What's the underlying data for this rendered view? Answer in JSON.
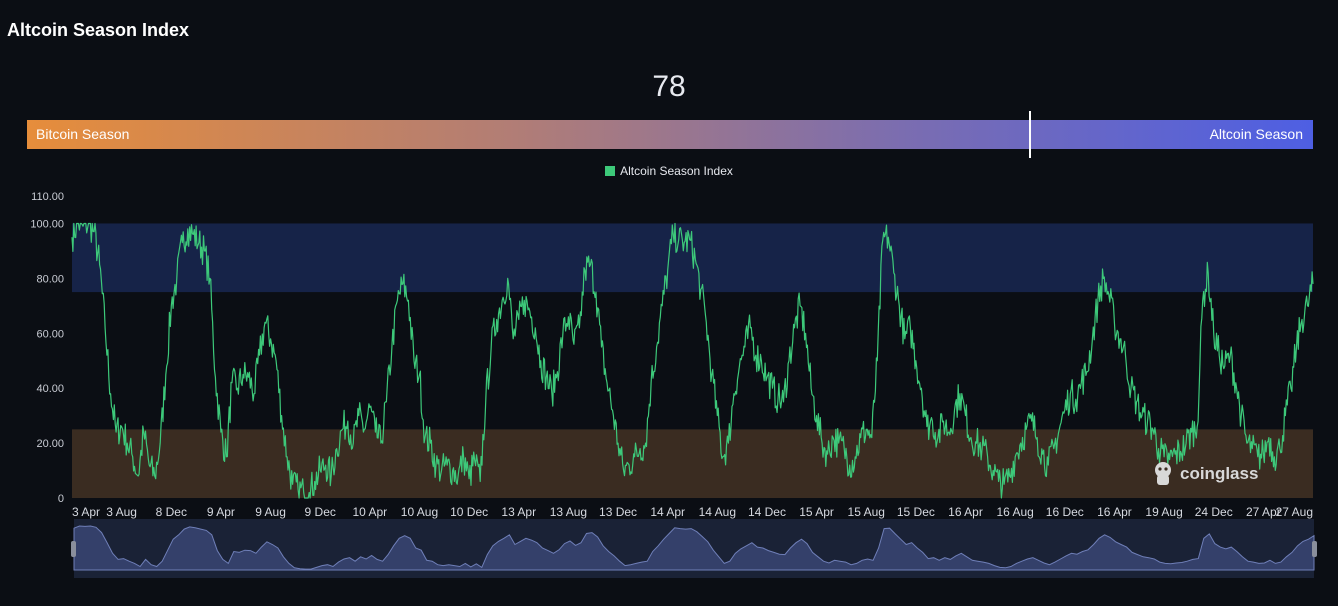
{
  "page": {
    "title": "Altcoin Season Index",
    "current_value": "78",
    "bar_left_label": "Bitcoin Season",
    "bar_right_label": "Altcoin Season",
    "marker_fraction": 0.78,
    "watermark": "coinglass"
  },
  "colors": {
    "line": "#3dc97a",
    "altcoin_zone": "#162348",
    "bitcoin_zone": "#3a2c21",
    "background": "#0b0e14",
    "navigator_fill": "#34406a"
  },
  "chart_data": {
    "type": "line",
    "title": "",
    "legend": [
      "Altcoin Season Index"
    ],
    "legend_position": "top-center",
    "ylim": [
      0,
      110
    ],
    "yticks": [
      "0",
      "20.00",
      "40.00",
      "60.00",
      "80.00",
      "100.00",
      "110.00"
    ],
    "ytick_values": [
      0,
      20,
      40,
      60,
      80,
      100,
      110
    ],
    "x_tick_labels": [
      "3 Apr",
      "3 Aug",
      "8 Dec",
      "9 Apr",
      "9 Aug",
      "9 Dec",
      "10 Apr",
      "10 Aug",
      "10 Dec",
      "13 Apr",
      "13 Aug",
      "13 Dec",
      "14 Apr",
      "14 Aug",
      "14 Dec",
      "15 Apr",
      "15 Aug",
      "15 Dec",
      "16 Apr",
      "16 Aug",
      "16 Dec",
      "16 Apr",
      "19 Aug",
      "24 Dec",
      "27 Apr",
      "27 Aug"
    ],
    "bands": [
      {
        "from": 75,
        "to": 100,
        "meaning": "altcoin season"
      },
      {
        "from": 0,
        "to": 25,
        "meaning": "bitcoin season"
      }
    ],
    "series": [
      {
        "name": "Altcoin Season Index",
        "keypoints": [
          [
            0,
            95
          ],
          [
            1,
            100
          ],
          [
            2,
            99
          ],
          [
            3,
            100
          ],
          [
            4,
            97
          ],
          [
            5,
            85
          ],
          [
            6,
            62
          ],
          [
            7,
            38
          ],
          [
            8,
            24
          ],
          [
            9,
            26
          ],
          [
            10,
            20
          ],
          [
            11,
            15
          ],
          [
            12,
            8
          ],
          [
            13,
            24
          ],
          [
            14,
            12
          ],
          [
            15,
            8
          ],
          [
            16,
            20
          ],
          [
            17,
            45
          ],
          [
            18,
            70
          ],
          [
            19,
            80
          ],
          [
            20,
            93
          ],
          [
            21,
            98
          ],
          [
            22,
            96
          ],
          [
            23,
            93
          ],
          [
            24,
            90
          ],
          [
            25,
            80
          ],
          [
            26,
            44
          ],
          [
            27,
            24
          ],
          [
            28,
            15
          ],
          [
            29,
            42
          ],
          [
            30,
            40
          ],
          [
            31,
            45
          ],
          [
            32,
            44
          ],
          [
            33,
            38
          ],
          [
            34,
            52
          ],
          [
            35,
            64
          ],
          [
            36,
            58
          ],
          [
            37,
            50
          ],
          [
            38,
            30
          ],
          [
            39,
            15
          ],
          [
            40,
            5
          ],
          [
            41,
            3
          ],
          [
            42,
            2
          ],
          [
            43,
            2
          ],
          [
            44,
            6
          ],
          [
            45,
            10
          ],
          [
            46,
            12
          ],
          [
            47,
            8
          ],
          [
            48,
            18
          ],
          [
            49,
            25
          ],
          [
            50,
            28
          ],
          [
            51,
            20
          ],
          [
            52,
            30
          ],
          [
            53,
            25
          ],
          [
            54,
            33
          ],
          [
            55,
            24
          ],
          [
            56,
            20
          ],
          [
            57,
            35
          ],
          [
            58,
            55
          ],
          [
            59,
            72
          ],
          [
            60,
            78
          ],
          [
            61,
            72
          ],
          [
            62,
            50
          ],
          [
            63,
            45
          ],
          [
            64,
            22
          ],
          [
            65,
            20
          ],
          [
            66,
            12
          ],
          [
            67,
            10
          ],
          [
            68,
            12
          ],
          [
            69,
            10
          ],
          [
            70,
            8
          ],
          [
            71,
            15
          ],
          [
            72,
            7
          ],
          [
            73,
            14
          ],
          [
            74,
            6
          ],
          [
            75,
            35
          ],
          [
            76,
            55
          ],
          [
            77,
            65
          ],
          [
            78,
            72
          ],
          [
            79,
            80
          ],
          [
            80,
            58
          ],
          [
            81,
            65
          ],
          [
            82,
            72
          ],
          [
            83,
            68
          ],
          [
            84,
            62
          ],
          [
            85,
            50
          ],
          [
            86,
            44
          ],
          [
            87,
            38
          ],
          [
            88,
            46
          ],
          [
            89,
            60
          ],
          [
            90,
            66
          ],
          [
            91,
            56
          ],
          [
            92,
            62
          ],
          [
            93,
            83
          ],
          [
            94,
            85
          ],
          [
            95,
            75
          ],
          [
            96,
            55
          ],
          [
            97,
            42
          ],
          [
            98,
            32
          ],
          [
            99,
            20
          ],
          [
            100,
            10
          ],
          [
            101,
            12
          ],
          [
            102,
            15
          ],
          [
            103,
            18
          ],
          [
            104,
            20
          ],
          [
            105,
            42
          ],
          [
            106,
            55
          ],
          [
            107,
            70
          ],
          [
            108,
            83
          ],
          [
            109,
            96
          ],
          [
            110,
            94
          ],
          [
            111,
            93
          ],
          [
            112,
            94
          ],
          [
            113,
            87
          ],
          [
            114,
            76
          ],
          [
            115,
            64
          ],
          [
            116,
            45
          ],
          [
            117,
            30
          ],
          [
            118,
            15
          ],
          [
            119,
            20
          ],
          [
            120,
            38
          ],
          [
            121,
            48
          ],
          [
            122,
            55
          ],
          [
            123,
            62
          ],
          [
            124,
            52
          ],
          [
            125,
            50
          ],
          [
            126,
            44
          ],
          [
            127,
            40
          ],
          [
            128,
            36
          ],
          [
            129,
            35
          ],
          [
            130,
            50
          ],
          [
            131,
            62
          ],
          [
            132,
            70
          ],
          [
            133,
            60
          ],
          [
            134,
            40
          ],
          [
            135,
            30
          ],
          [
            136,
            20
          ],
          [
            137,
            16
          ],
          [
            138,
            22
          ],
          [
            139,
            20
          ],
          [
            140,
            18
          ],
          [
            141,
            12
          ],
          [
            142,
            15
          ],
          [
            143,
            22
          ],
          [
            144,
            25
          ],
          [
            145,
            22
          ],
          [
            146,
            50
          ],
          [
            147,
            94
          ],
          [
            148,
            95
          ],
          [
            149,
            82
          ],
          [
            150,
            70
          ],
          [
            151,
            58
          ],
          [
            152,
            62
          ],
          [
            153,
            50
          ],
          [
            154,
            40
          ],
          [
            155,
            26
          ],
          [
            156,
            28
          ],
          [
            157,
            22
          ],
          [
            158,
            28
          ],
          [
            159,
            24
          ],
          [
            160,
            32
          ],
          [
            161,
            38
          ],
          [
            162,
            30
          ],
          [
            163,
            22
          ],
          [
            164,
            20
          ],
          [
            165,
            18
          ],
          [
            166,
            15
          ],
          [
            167,
            10
          ],
          [
            168,
            6
          ],
          [
            169,
            5
          ],
          [
            170,
            8
          ],
          [
            171,
            15
          ],
          [
            172,
            20
          ],
          [
            173,
            25
          ],
          [
            174,
            28
          ],
          [
            175,
            22
          ],
          [
            176,
            16
          ],
          [
            177,
            12
          ],
          [
            178,
            18
          ],
          [
            179,
            25
          ],
          [
            180,
            32
          ],
          [
            181,
            38
          ],
          [
            182,
            36
          ],
          [
            183,
            42
          ],
          [
            184,
            46
          ],
          [
            185,
            58
          ],
          [
            186,
            72
          ],
          [
            187,
            80
          ],
          [
            188,
            74
          ],
          [
            189,
            64
          ],
          [
            190,
            58
          ],
          [
            191,
            52
          ],
          [
            192,
            40
          ],
          [
            193,
            35
          ],
          [
            194,
            30
          ],
          [
            195,
            28
          ],
          [
            196,
            25
          ],
          [
            197,
            18
          ],
          [
            198,
            15
          ],
          [
            199,
            14
          ],
          [
            200,
            16
          ],
          [
            201,
            17
          ],
          [
            202,
            20
          ],
          [
            203,
            24
          ],
          [
            204,
            26
          ],
          [
            205,
            72
          ],
          [
            206,
            82
          ],
          [
            207,
            60
          ],
          [
            208,
            52
          ],
          [
            209,
            48
          ],
          [
            210,
            52
          ],
          [
            211,
            42
          ],
          [
            212,
            30
          ],
          [
            213,
            20
          ],
          [
            214,
            18
          ],
          [
            215,
            15
          ],
          [
            216,
            16
          ],
          [
            217,
            22
          ],
          [
            218,
            15
          ],
          [
            219,
            18
          ],
          [
            220,
            30
          ],
          [
            221,
            40
          ],
          [
            222,
            55
          ],
          [
            223,
            65
          ],
          [
            224,
            70
          ],
          [
            225,
            78
          ]
        ]
      }
    ]
  }
}
